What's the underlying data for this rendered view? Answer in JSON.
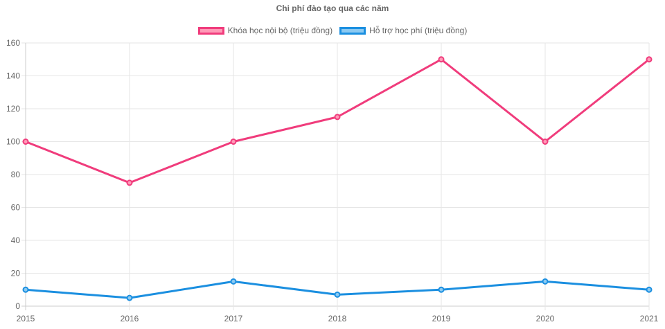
{
  "chart_data": {
    "type": "line",
    "title": "Chi phí đào tạo qua các năm",
    "categories": [
      "2015",
      "2016",
      "2017",
      "2018",
      "2019",
      "2020",
      "2021"
    ],
    "series": [
      {
        "name": "Khóa học nội bộ (triệu đồng)",
        "values": [
          100,
          75,
          100,
          115,
          150,
          100,
          150
        ],
        "color": "#f03c7c",
        "fill": "#ff9ab8"
      },
      {
        "name": "Hỗ trợ học phí (triệu đồng)",
        "values": [
          10,
          5,
          15,
          7,
          10,
          15,
          10
        ],
        "color": "#1b8fe0",
        "fill": "#8ccaf2"
      }
    ],
    "ylim": [
      0,
      160
    ],
    "yticks": [
      "0",
      "20",
      "40",
      "60",
      "80",
      "100",
      "120",
      "140",
      "160"
    ],
    "grid": true,
    "legend_position": "top-center"
  }
}
